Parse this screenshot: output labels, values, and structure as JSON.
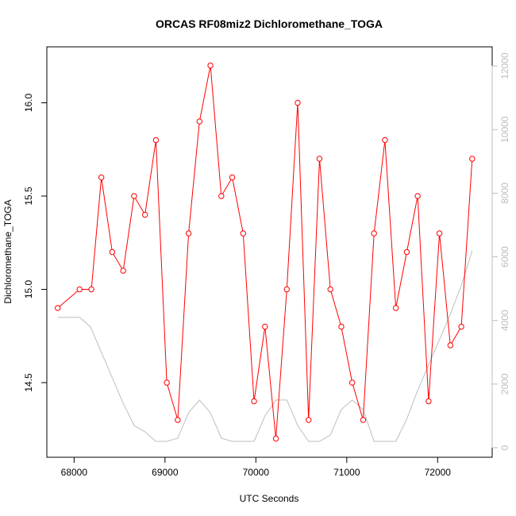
{
  "chart_data": {
    "type": "line",
    "title": "ORCAS RF08miz2 Dichloromethane_TOGA",
    "xlabel": "UTC Seconds",
    "ylabel": "Dichloromethane_TOGA",
    "xlim": [
      67700,
      72600
    ],
    "ylim": [
      14.1,
      16.3
    ],
    "x_ticks": [
      "68000",
      "69000",
      "70000",
      "71000",
      "72000"
    ],
    "y_ticks": [
      "14.5",
      "15.0",
      "15.5",
      "16.0"
    ],
    "y2lim": [
      -300,
      12600
    ],
    "y2_ticks": [
      "0",
      "2000",
      "4000",
      "6000",
      "8000",
      "10000",
      "12000"
    ],
    "grid": false,
    "series": [
      {
        "color": "#ff0000",
        "style": "line-with-open-circles",
        "axis": "left",
        "x": [
          67820,
          68060,
          68190,
          68300,
          68420,
          68540,
          68660,
          68780,
          68900,
          69020,
          69140,
          69260,
          69380,
          69500,
          69620,
          69740,
          69860,
          69980,
          70100,
          70220,
          70340,
          70460,
          70580,
          70700,
          70820,
          70940,
          71060,
          71180,
          71300,
          71420,
          71540,
          71660,
          71780,
          71900,
          72020,
          72140,
          72260,
          72380
        ],
        "values": [
          14.9,
          15.0,
          15.0,
          15.6,
          15.2,
          15.1,
          15.5,
          15.4,
          15.8,
          14.5,
          14.3,
          15.3,
          15.9,
          16.2,
          15.5,
          15.6,
          15.3,
          14.4,
          14.8,
          14.2,
          15.0,
          16.0,
          14.3,
          15.7,
          15.0,
          14.8,
          14.5,
          14.3,
          15.3,
          15.8,
          14.9,
          15.2,
          15.5,
          14.4,
          15.3,
          14.7,
          14.8,
          15.7
        ]
      },
      {
        "color": "#bebebe",
        "style": "line",
        "axis": "right",
        "x": [
          67820,
          68060,
          68180,
          68300,
          68420,
          68540,
          68660,
          68780,
          68900,
          69020,
          69140,
          69260,
          69380,
          69500,
          69620,
          69740,
          69860,
          69980,
          70100,
          70220,
          70340,
          70460,
          70580,
          70700,
          70820,
          70940,
          71060,
          71180,
          71300,
          71420,
          71540,
          71660,
          71780,
          71900,
          72020,
          72140,
          72260,
          72380
        ],
        "values": [
          4100,
          4100,
          3800,
          3000,
          2200,
          1400,
          700,
          500,
          200,
          200,
          300,
          1100,
          1500,
          1100,
          300,
          200,
          200,
          200,
          1000,
          1500,
          1500,
          700,
          200,
          200,
          400,
          1200,
          1500,
          1200,
          200,
          200,
          200,
          900,
          1800,
          2600,
          3400,
          4200,
          5100,
          6200
        ]
      }
    ]
  }
}
